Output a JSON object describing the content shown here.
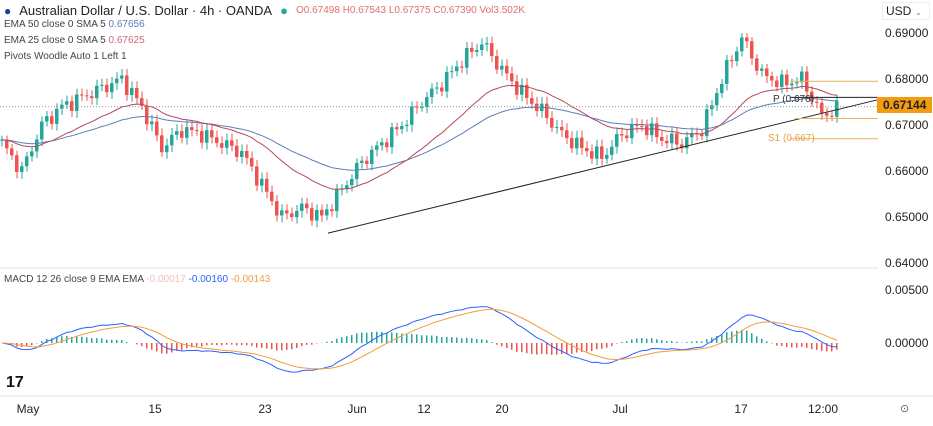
{
  "header": {
    "title": "Australian Dollar / U.S. Dollar · 4h · OANDA",
    "o": "O0.67498",
    "h": "H0.67543",
    "l": "L0.67375",
    "c": "C0.67390",
    "vol": "Vol3.502K",
    "currency": "USD"
  },
  "indicators": [
    {
      "label": "EMA 50 close 0 SMA 5",
      "value": "0.67656",
      "color": "#5b7fb5"
    },
    {
      "label": "EMA 25 close 0 SMA 5",
      "value": "0.67625",
      "color": "#b5485e"
    },
    {
      "label": "Pivots Woodle Auto 1 Left 1",
      "value": ""
    }
  ],
  "macd": {
    "label": "MACD 12 26 close 9 EMA EMA",
    "v1": "-0.00017",
    "v2": "-0.00160",
    "v3": "-0.00143"
  },
  "pivots": {
    "p_label": "P (0.676)",
    "s1_label": "S1 (0.667)",
    "p": 0.676,
    "r1": 0.6795,
    "s1": 0.667,
    "s0": 0.6714
  },
  "price_badge": "0.67144",
  "chart_data": {
    "type": "candlestick",
    "ylim": [
      0.636,
      0.694
    ],
    "yticks": [
      "0.69000",
      "0.68000",
      "0.67000",
      "0.66000",
      "0.65000",
      "0.64000"
    ],
    "ytick_values": [
      0.69,
      0.68,
      0.67,
      0.66,
      0.65,
      0.64
    ],
    "macd_yticks": [
      "0.00500",
      "0.00000"
    ],
    "macd_ytick_values": [
      0.005,
      0
    ],
    "xticks": [
      "May",
      "15",
      "23",
      "Jun",
      "12",
      "20",
      "Jul",
      "17",
      "12:00"
    ],
    "closes": [
      0.666,
      0.66,
      0.67,
      0.674,
      0.676,
      0.678,
      0.68,
      0.674,
      0.665,
      0.669,
      0.668,
      0.666,
      0.664,
      0.657,
      0.65,
      0.652,
      0.65,
      0.656,
      0.662,
      0.666,
      0.67,
      0.675,
      0.679,
      0.684,
      0.688,
      0.682,
      0.677,
      0.673,
      0.668,
      0.665,
      0.663,
      0.668,
      0.67,
      0.667,
      0.666,
      0.669,
      0.68,
      0.689,
      0.681,
      0.679,
      0.68,
      0.672,
      0.674
    ],
    "trendline": [
      0.6465,
      0.6755
    ],
    "current_price": 0.674
  }
}
